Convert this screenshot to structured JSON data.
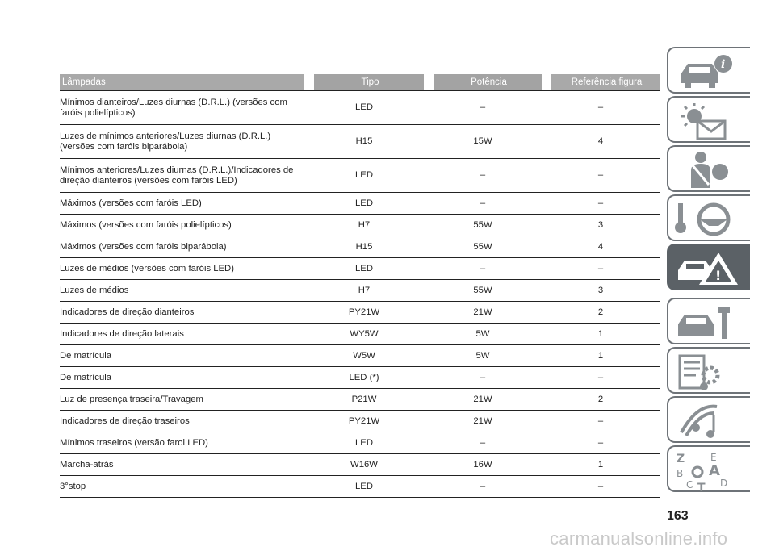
{
  "table": {
    "headers": [
      "Lâmpadas",
      "Tipo",
      "Potência",
      "Referência figura"
    ],
    "rows": [
      {
        "name": "Mínimos dianteiros/Luzes diurnas (D.R.L.) (versões com faróis polielípticos)",
        "tipo": "LED",
        "potencia": "–",
        "ref": "–"
      },
      {
        "name": "Luzes de mínimos anteriores/Luzes diurnas (D.R.L.) (versões com faróis biparábola)",
        "tipo": "H15",
        "potencia": "15W",
        "ref": "4"
      },
      {
        "name": "Mínimos anteriores/Luzes diurnas (D.R.L.)/Indicadores de direção dianteiros (versões com faróis LED)",
        "tipo": "LED",
        "potencia": "–",
        "ref": "–"
      },
      {
        "name": "Máximos (versões com faróis LED)",
        "tipo": "LED",
        "potencia": "–",
        "ref": "–"
      },
      {
        "name": "Máximos (versões com faróis polielípticos)",
        "tipo": "H7",
        "potencia": "55W",
        "ref": "3"
      },
      {
        "name": "Máximos (versões com faróis biparábola)",
        "tipo": "H15",
        "potencia": "55W",
        "ref": "4"
      },
      {
        "name": "Luzes de médios (versões com faróis LED)",
        "tipo": "LED",
        "potencia": "–",
        "ref": "–"
      },
      {
        "name": "Luzes de médios",
        "tipo": "H7",
        "potencia": "55W",
        "ref": "3"
      },
      {
        "name": "Indicadores de direção dianteiros",
        "tipo": "PY21W",
        "potencia": "21W",
        "ref": "2"
      },
      {
        "name": "Indicadores de direção laterais",
        "tipo": "WY5W",
        "potencia": "5W",
        "ref": "1"
      },
      {
        "name": "De matrícula",
        "tipo": "W5W",
        "potencia": "5W",
        "ref": "1"
      },
      {
        "name": "De matrícula",
        "tipo": "LED (*)",
        "potencia": "–",
        "ref": "–"
      },
      {
        "name": "Luz de presença traseira/Travagem",
        "tipo": "P21W",
        "potencia": "21W",
        "ref": "2"
      },
      {
        "name": "Indicadores de direção traseiros",
        "tipo": "PY21W",
        "potencia": "21W",
        "ref": "–"
      },
      {
        "name": "Mínimos traseiros (versão farol LED)",
        "tipo": "LED",
        "potencia": "–",
        "ref": "–"
      },
      {
        "name": "Marcha-atrás",
        "tipo": "W16W",
        "potencia": "16W",
        "ref": "1"
      },
      {
        "name": "3°stop",
        "tipo": "LED",
        "potencia": "–",
        "ref": "–"
      }
    ]
  },
  "sidebar": {
    "tabs": [
      {
        "icon": "car-info-icon",
        "active": false
      },
      {
        "icon": "warning-lights-message-icon",
        "active": false
      },
      {
        "icon": "seatbelt-airbag-icon",
        "active": false
      },
      {
        "icon": "key-steering-wheel-icon",
        "active": false
      },
      {
        "icon": "emergency-car-icon",
        "active": true
      },
      {
        "icon": "car-maintenance-wrench-icon",
        "active": false
      },
      {
        "icon": "technical-data-gears-icon",
        "active": false
      },
      {
        "icon": "multimedia-music-icon",
        "active": false
      },
      {
        "icon": "alphabetical-index-icon",
        "active": false
      }
    ],
    "index_letters": [
      "Z",
      "E",
      "B",
      "A",
      "C",
      "T",
      "D"
    ]
  },
  "page_number": "163",
  "watermark": "carmanualsonline.info",
  "colors": {
    "header_bg": "#a3a3a3",
    "tab_border": "#6e7378",
    "tab_active": "#5b6166",
    "icon_gray": "#8a8f93"
  }
}
